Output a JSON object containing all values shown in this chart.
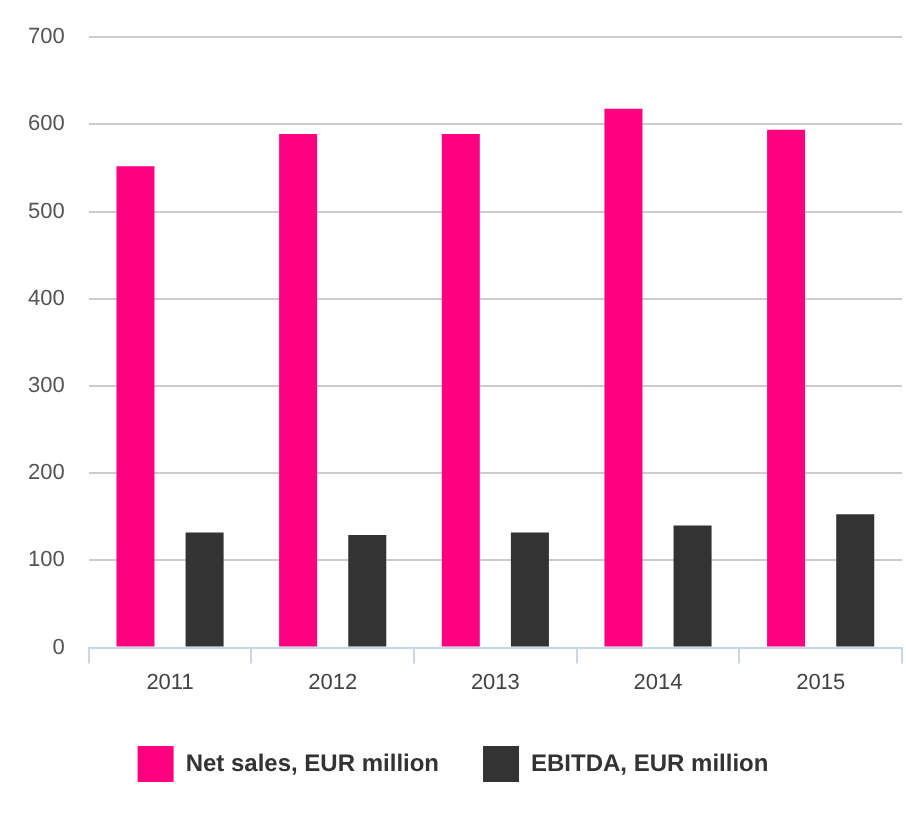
{
  "chart_data": {
    "type": "bar",
    "categories": [
      "2011",
      "2012",
      "2013",
      "2014",
      "2015"
    ],
    "series": [
      {
        "name": "Net sales, EUR million",
        "color": "#ff0080",
        "values": [
          552,
          589,
          589,
          618,
          594
        ]
      },
      {
        "name": "EBITDA, EUR million",
        "color": "#333333",
        "values": [
          132,
          129,
          132,
          140,
          153
        ]
      }
    ],
    "ylim": [
      0,
      700
    ],
    "yticks": [
      0,
      100,
      200,
      300,
      400,
      500,
      600,
      700
    ],
    "grid": "y",
    "legend": "bottom"
  }
}
